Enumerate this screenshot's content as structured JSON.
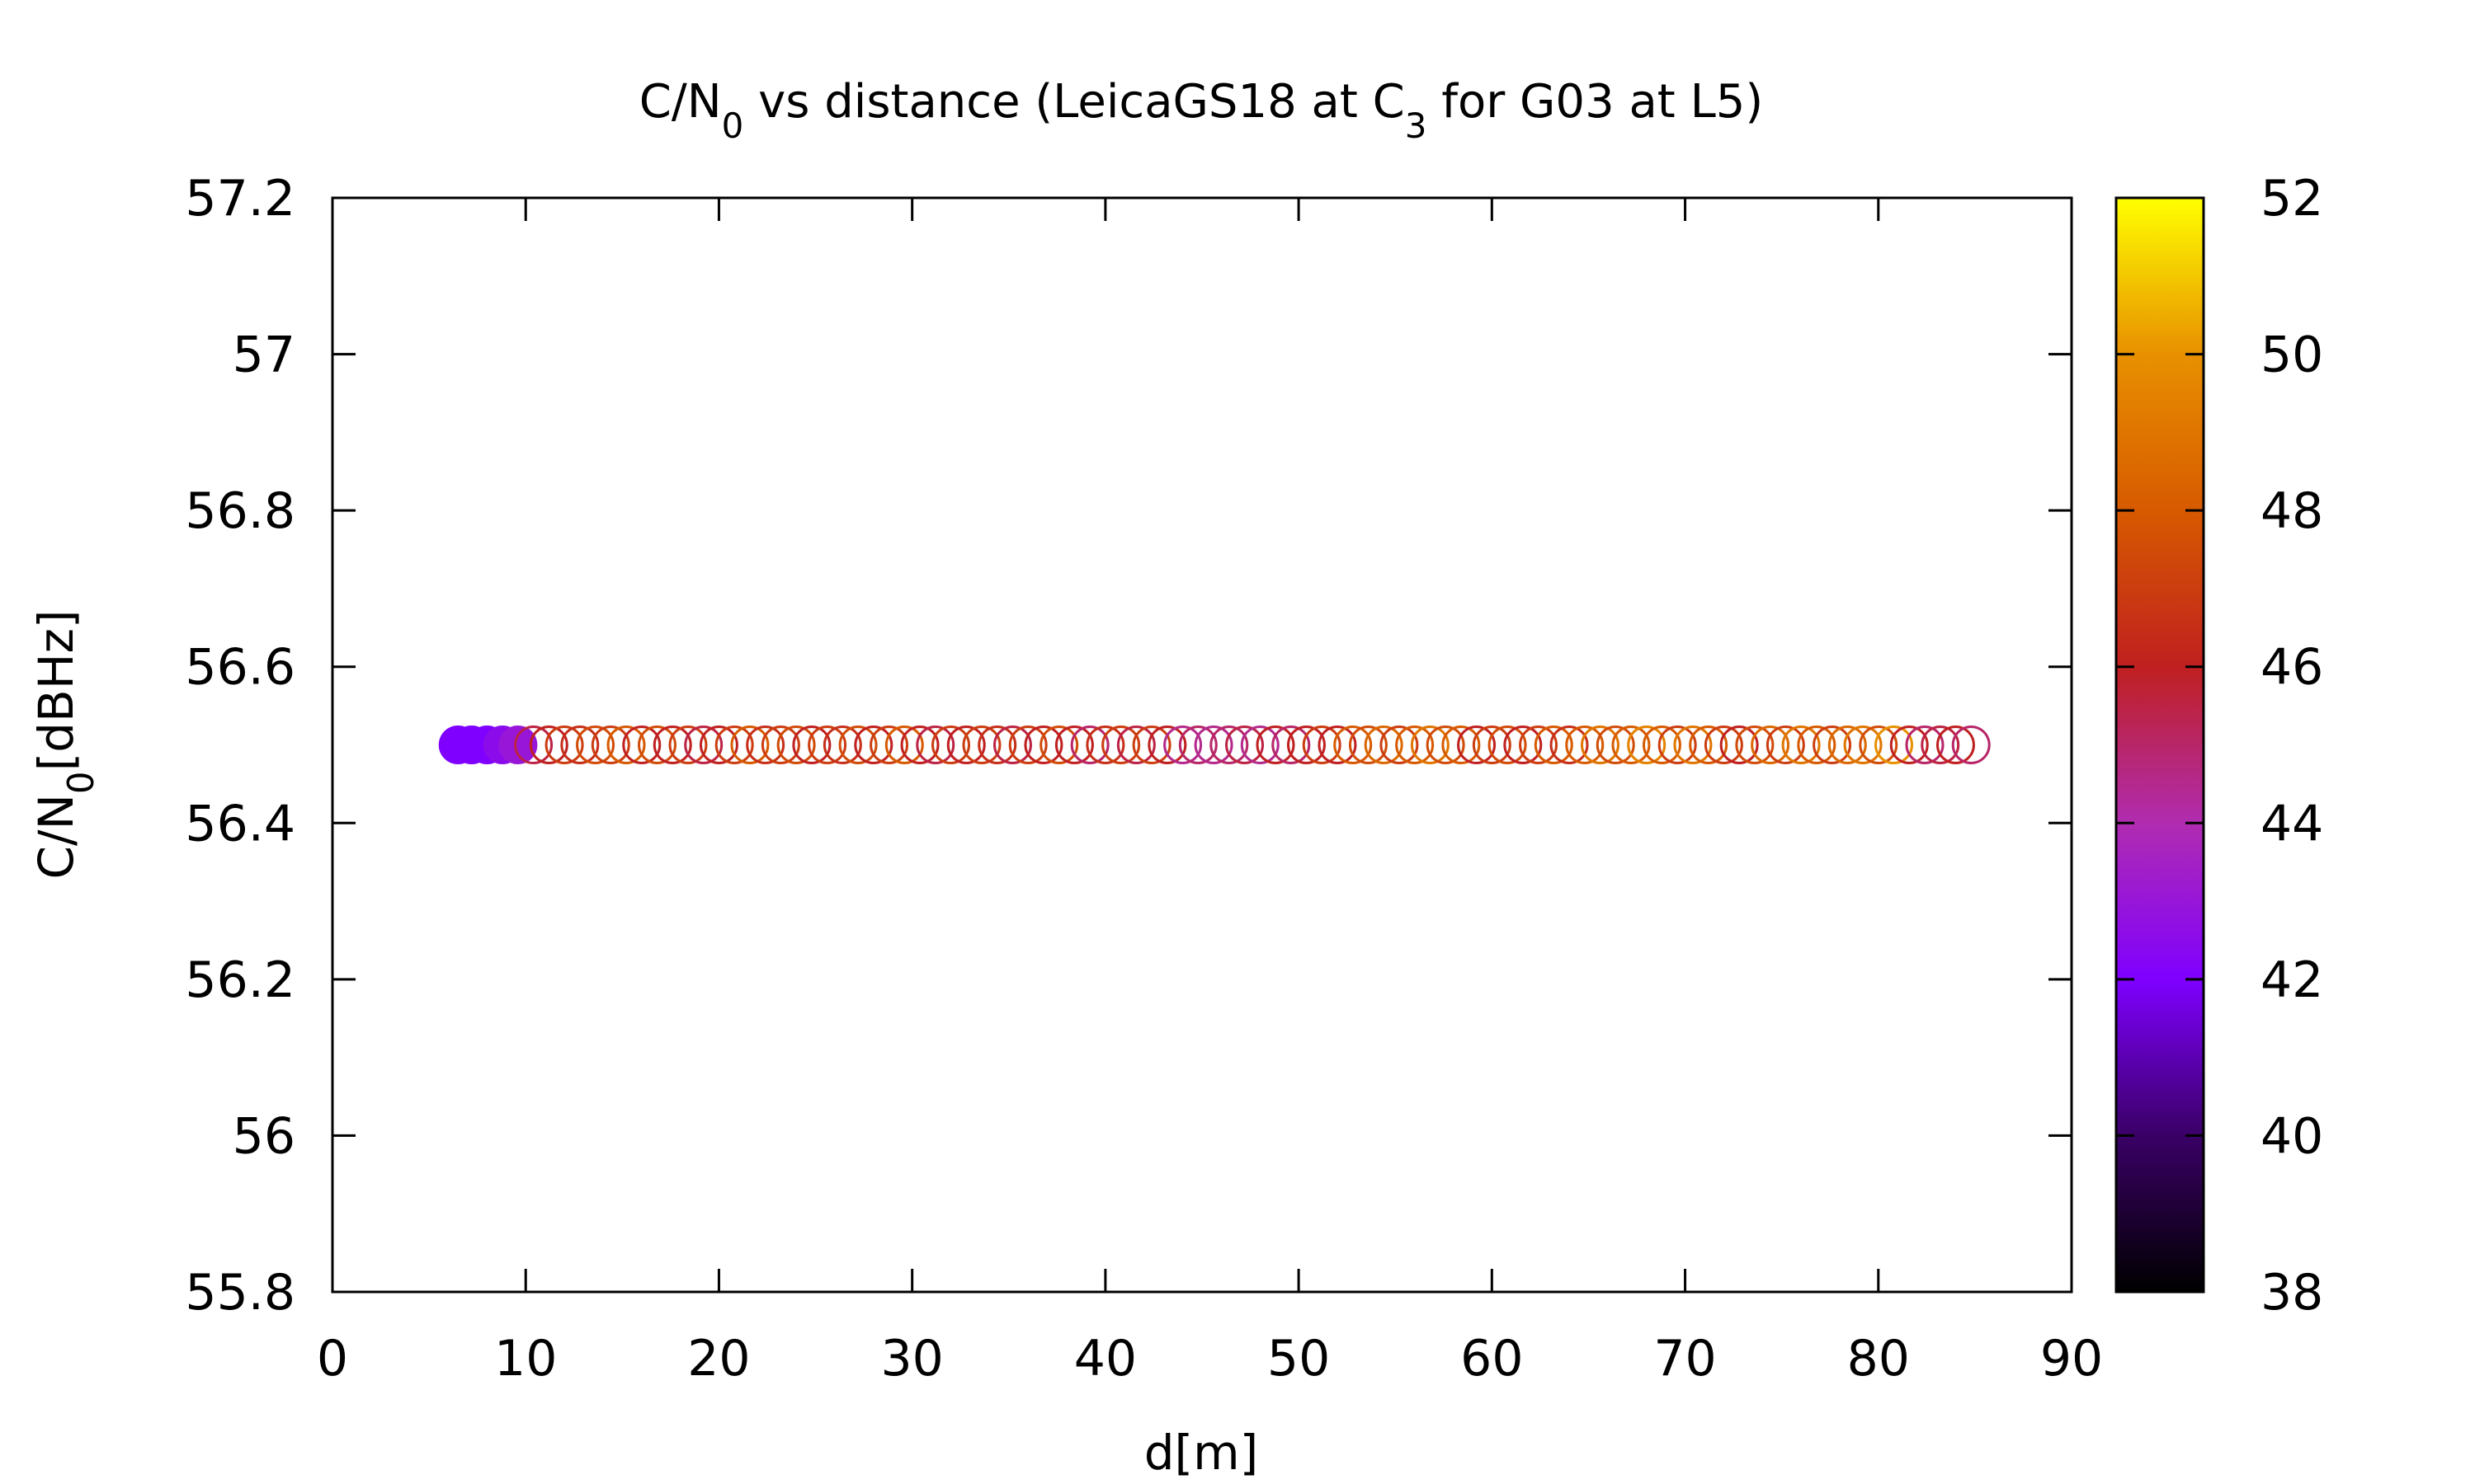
{
  "chart_data": {
    "type": "scatter",
    "title": {
      "parts": [
        {
          "text": "C/N"
        },
        {
          "text": "0",
          "sub": true
        },
        {
          "text": " vs distance (LeicaGS18 at C"
        },
        {
          "text": "3",
          "sub": true
        },
        {
          "text": " for G03 at L5)"
        }
      ]
    },
    "xlabel": "d[m]",
    "ylabel": {
      "parts": [
        {
          "text": "C/N"
        },
        {
          "text": "0",
          "sub": true
        },
        {
          "text": "[dBHz]"
        }
      ]
    },
    "xlim": [
      0,
      90
    ],
    "ylim": [
      55.8,
      57.2
    ],
    "x_ticks": [
      "0",
      "10",
      "20",
      "30",
      "40",
      "50",
      "60",
      "70",
      "80",
      "90"
    ],
    "y_ticks": [
      "55.8",
      "56",
      "56.2",
      "56.4",
      "56.6",
      "56.8",
      "57",
      "57.2"
    ],
    "grid": false,
    "legend": "none",
    "colorbar": {
      "range": [
        38,
        52
      ],
      "ticks": [
        "38",
        "40",
        "42",
        "44",
        "46",
        "48",
        "50",
        "52"
      ],
      "palette": [
        "#000000",
        "#3a0066",
        "#7f00ff",
        "#b02cb0",
        "#c02020",
        "#d75a00",
        "#e89000",
        "#ffff00"
      ]
    },
    "marker": {
      "shape": "circle",
      "style": "open"
    },
    "series": [
      {
        "x": [
          6.5,
          7.2,
          8.0,
          8.8,
          9.6,
          10.4,
          11.2,
          12.0,
          12.8,
          13.6,
          14.4,
          15.2,
          16.0,
          16.8,
          17.6,
          18.4,
          19.2,
          20.0,
          20.8,
          21.6,
          22.4,
          23.2,
          24.0,
          24.8,
          25.6,
          26.4,
          27.2,
          28.0,
          28.8,
          29.6,
          30.4,
          31.2,
          32.0,
          32.8,
          33.6,
          34.4,
          35.2,
          36.0,
          36.8,
          37.6,
          38.4,
          39.2,
          40.0,
          40.8,
          41.6,
          42.4,
          43.2,
          44.0,
          44.8,
          45.6,
          46.4,
          47.2,
          48.0,
          48.8,
          49.6,
          50.4,
          51.2,
          52.0,
          52.8,
          53.6,
          54.4,
          55.2,
          56.0,
          56.8,
          57.6,
          58.4,
          59.2,
          60.0,
          60.8,
          61.6,
          62.4,
          63.2,
          64.0,
          64.8,
          65.6,
          66.4,
          67.2,
          68.0,
          68.8,
          69.6,
          70.4,
          71.2,
          72.0,
          72.8,
          73.6,
          74.4,
          75.2,
          76.0,
          76.8,
          77.6,
          78.4,
          79.2,
          80.0,
          80.8,
          81.6,
          82.4,
          83.2,
          84.0,
          84.8
        ],
        "y": [
          56.5,
          56.5,
          56.5,
          56.5,
          56.5,
          56.5,
          56.5,
          56.5,
          56.5,
          56.5,
          56.5,
          56.5,
          56.5,
          56.5,
          56.5,
          56.5,
          56.5,
          56.5,
          56.5,
          56.5,
          56.5,
          56.5,
          56.5,
          56.5,
          56.5,
          56.5,
          56.5,
          56.5,
          56.5,
          56.5,
          56.5,
          56.5,
          56.5,
          56.5,
          56.5,
          56.5,
          56.5,
          56.5,
          56.5,
          56.5,
          56.5,
          56.5,
          56.5,
          56.5,
          56.5,
          56.5,
          56.5,
          56.5,
          56.5,
          56.5,
          56.5,
          56.5,
          56.5,
          56.5,
          56.5,
          56.5,
          56.5,
          56.5,
          56.5,
          56.5,
          56.5,
          56.5,
          56.5,
          56.5,
          56.5,
          56.5,
          56.5,
          56.5,
          56.5,
          56.5,
          56.5,
          56.5,
          56.5,
          56.5,
          56.5,
          56.5,
          56.5,
          56.5,
          56.5,
          56.5,
          56.5,
          56.5,
          56.5,
          56.5,
          56.5,
          56.5,
          56.5,
          56.5,
          56.5,
          56.5,
          56.5,
          56.5,
          56.5,
          56.5,
          56.5,
          56.5,
          56.5,
          56.5,
          56.5
        ],
        "c": [
          42,
          42,
          42,
          42.5,
          43,
          45.5,
          46,
          47,
          46.5,
          47.5,
          47,
          48,
          46,
          47.5,
          46,
          47,
          45.5,
          46,
          47,
          48,
          46.5,
          47,
          47.5,
          46,
          47,
          46.5,
          47.5,
          46,
          47,
          48,
          46,
          45.5,
          47,
          46,
          47,
          46.5,
          45.5,
          47,
          46,
          47.5,
          46,
          45,
          46.5,
          47,
          45.5,
          47,
          46,
          44.5,
          45,
          44.5,
          45,
          45.5,
          44.5,
          46,
          45,
          46,
          47,
          46,
          48,
          47.5,
          48.5,
          47,
          48,
          49,
          47.5,
          48,
          46,
          47,
          47.5,
          46,
          47,
          48,
          46.5,
          48,
          49,
          47.5,
          48,
          49.5,
          48,
          47,
          49,
          48,
          47,
          46,
          47.5,
          48.5,
          47,
          49,
          48,
          47,
          48.5,
          49,
          47.5,
          50,
          46,
          45,
          45.5,
          46,
          45
        ]
      }
    ]
  }
}
